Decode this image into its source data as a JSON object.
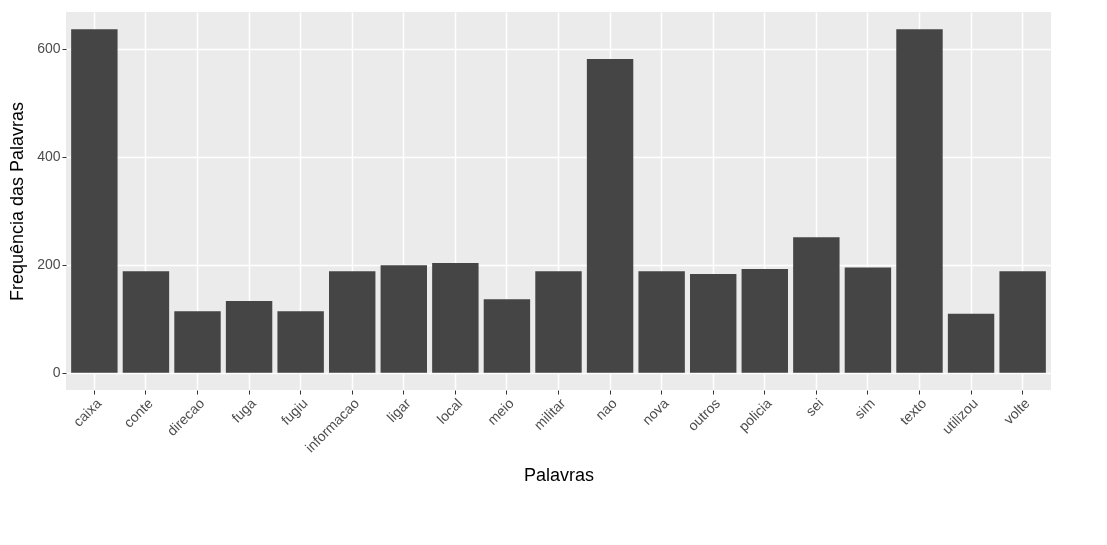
{
  "chart_data": {
    "type": "bar",
    "xlabel": "Palavras",
    "ylabel": "Frequência das Palavras",
    "categories": [
      "caixa",
      "conte",
      "direcao",
      "fuga",
      "fugiu",
      "informacao",
      "ligar",
      "local",
      "meio",
      "militar",
      "nao",
      "nova",
      "outros",
      "policia",
      "sei",
      "sim",
      "texto",
      "utilizou",
      "volte"
    ],
    "values": [
      636,
      188,
      114,
      133,
      114,
      188,
      199,
      203,
      136,
      188,
      581,
      188,
      183,
      192,
      251,
      195,
      636,
      109,
      188
    ],
    "color": "#454545",
    "ylim": [
      -32,
      668
    ],
    "yticks": [
      0,
      200,
      400,
      600
    ],
    "grid": true
  }
}
